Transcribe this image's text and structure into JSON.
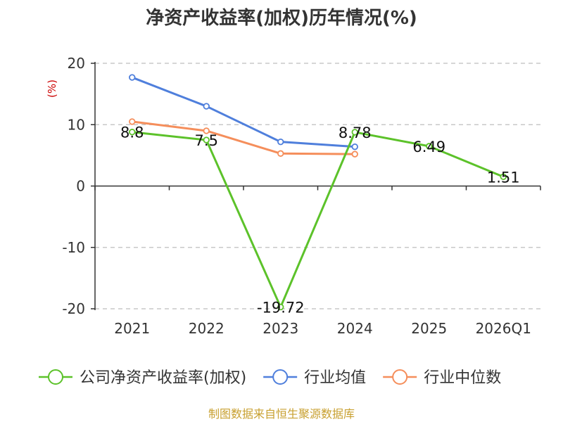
{
  "chart_data": {
    "type": "line",
    "title": "净资产收益率(加权)历年情况(%)",
    "ylabel": "(%)",
    "categories": [
      "2021",
      "2022",
      "2023",
      "2024",
      "2025",
      "2026Q1"
    ],
    "y_ticks": [
      "20",
      "10",
      "0",
      "-10",
      "-20"
    ],
    "y_tick_values": [
      20,
      10,
      0,
      -10,
      -20
    ],
    "ylim": [
      -20,
      20
    ],
    "grid": "horizontal-dashed",
    "legend_position": "bottom",
    "series": [
      {
        "name": "公司净资产收益率(加权)",
        "color": "#5cc22a",
        "values": [
          8.8,
          7.5,
          -19.72,
          8.78,
          6.49,
          1.51
        ],
        "labels": [
          "8.8",
          "7.5",
          "-19.72",
          "8.78",
          "6.49",
          "1.51"
        ]
      },
      {
        "name": "行业均值",
        "color": "#4f7fdc",
        "values": [
          17.7,
          13.0,
          7.2,
          6.4,
          null,
          null
        ]
      },
      {
        "name": "行业中位数",
        "color": "#f58e5b",
        "values": [
          10.5,
          9.0,
          5.3,
          5.2,
          null,
          null
        ]
      }
    ]
  },
  "source": "制图数据来自恒生聚源数据库"
}
